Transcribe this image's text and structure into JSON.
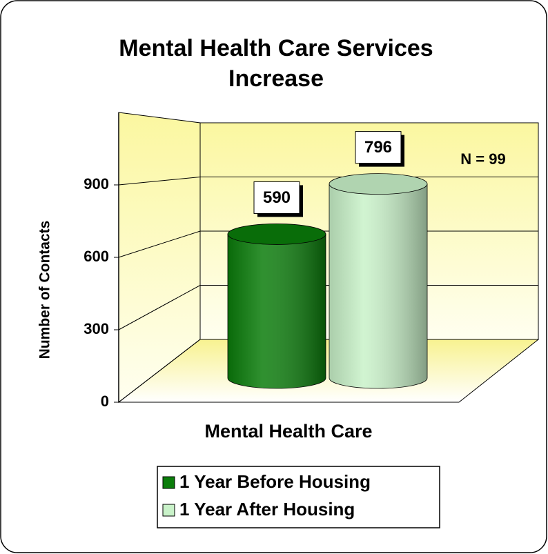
{
  "chart_data": {
    "type": "bar3d-cylinder",
    "title": "Mental Health Care Services Increase",
    "ylabel": "Number of Contacts",
    "annotation": "N = 99",
    "categories": [
      "Mental Health Care"
    ],
    "series": [
      {
        "name": "1 Year Before Housing",
        "color": "#0b7d0b",
        "values": [
          590
        ]
      },
      {
        "name": "1 Year After Housing",
        "color": "#c9f2c9",
        "values": [
          796
        ]
      }
    ],
    "ylim": [
      0,
      1200
    ],
    "yticks": [
      0,
      300,
      600,
      900
    ],
    "grid": true
  }
}
